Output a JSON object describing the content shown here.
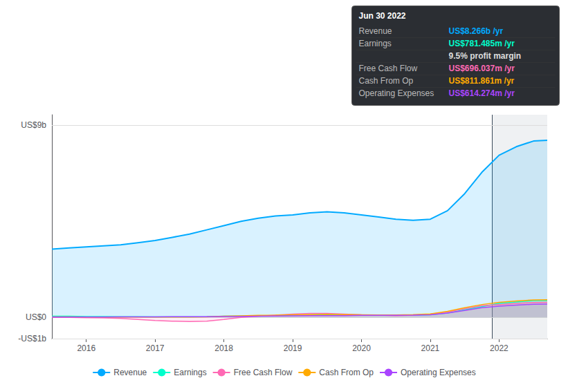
{
  "chart_data": {
    "type": "area",
    "x": [
      2015.5,
      2015.75,
      2016.0,
      2016.25,
      2016.5,
      2016.75,
      2017.0,
      2017.25,
      2017.5,
      2017.75,
      2018.0,
      2018.25,
      2018.5,
      2018.75,
      2019.0,
      2019.25,
      2019.5,
      2019.75,
      2020.0,
      2020.25,
      2020.5,
      2020.75,
      2021.0,
      2021.25,
      2021.5,
      2021.75,
      2022.0,
      2022.25,
      2022.5,
      2022.7
    ],
    "series": [
      {
        "name": "Revenue",
        "color": "#00aaff",
        "values": [
          3.2,
          3.25,
          3.3,
          3.35,
          3.4,
          3.5,
          3.6,
          3.75,
          3.9,
          4.1,
          4.3,
          4.5,
          4.65,
          4.75,
          4.8,
          4.9,
          4.95,
          4.9,
          4.8,
          4.7,
          4.6,
          4.55,
          4.6,
          5.0,
          5.8,
          6.8,
          7.6,
          8.0,
          8.266,
          8.3
        ]
      },
      {
        "name": "Earnings",
        "color": "#00ffcc",
        "values": [
          0.05,
          0.05,
          0.04,
          0.04,
          0.03,
          0.03,
          0.02,
          0.02,
          0.02,
          0.03,
          0.05,
          0.06,
          0.07,
          0.08,
          0.1,
          0.12,
          0.13,
          0.12,
          0.11,
          0.1,
          0.09,
          0.1,
          0.12,
          0.2,
          0.35,
          0.5,
          0.65,
          0.72,
          0.781,
          0.79
        ]
      },
      {
        "name": "Free Cash Flow",
        "color": "#ff69b4",
        "values": [
          0.0,
          0.0,
          -0.02,
          -0.03,
          -0.05,
          -0.1,
          -0.15,
          -0.18,
          -0.2,
          -0.18,
          -0.1,
          0.0,
          0.05,
          0.1,
          0.15,
          0.18,
          0.18,
          0.15,
          0.12,
          0.1,
          0.08,
          0.1,
          0.15,
          0.25,
          0.4,
          0.55,
          0.6,
          0.65,
          0.696,
          0.7
        ]
      },
      {
        "name": "Cash From Op",
        "color": "#ffaa00",
        "values": [
          0.02,
          0.02,
          0.01,
          0.01,
          0.01,
          0.01,
          0.01,
          0.01,
          0.01,
          0.02,
          0.05,
          0.07,
          0.09,
          0.1,
          0.12,
          0.13,
          0.14,
          0.13,
          0.12,
          0.11,
          0.11,
          0.13,
          0.16,
          0.28,
          0.45,
          0.6,
          0.7,
          0.77,
          0.811,
          0.82
        ]
      },
      {
        "name": "Operating Expenses",
        "color": "#aa44ff",
        "values": [
          0.01,
          0.01,
          0.01,
          0.01,
          0.02,
          0.02,
          0.02,
          0.03,
          0.03,
          0.03,
          0.04,
          0.04,
          0.05,
          0.06,
          0.07,
          0.08,
          0.08,
          0.08,
          0.09,
          0.09,
          0.09,
          0.1,
          0.12,
          0.2,
          0.32,
          0.45,
          0.52,
          0.57,
          0.614,
          0.62
        ]
      }
    ],
    "xlim": [
      2015.5,
      2022.7
    ],
    "xticks": [
      2016,
      2017,
      2018,
      2019,
      2020,
      2021,
      2022
    ],
    "ylim": [
      -1.0,
      9.5
    ],
    "yticks": [
      {
        "value": -1.0,
        "label": "-US$1b"
      },
      {
        "value": 0.0,
        "label": "US$0"
      },
      {
        "value": 9.0,
        "label": "US$9b"
      }
    ],
    "grid": true,
    "legend": "bottom",
    "vertical_line_x": 2021.9,
    "annotations": {
      "title": "Jun 30 2022",
      "rows": [
        {
          "label": "Revenue",
          "text": "US$8.266b /yr",
          "color": "#00aaff"
        },
        {
          "label": "Earnings",
          "text": "US$781.485m /yr",
          "color": "#00ffcc"
        },
        {
          "text": "9.5% profit margin"
        },
        {
          "label": "Free Cash Flow",
          "text": "US$696.037m /yr",
          "color": "#ff69b4"
        },
        {
          "label": "Cash From Op",
          "text": "US$811.861m /yr",
          "color": "#ffaa00"
        },
        {
          "label": "Operating Expenses",
          "text": "US$614.274m /yr",
          "color": "#aa44ff"
        }
      ]
    }
  }
}
